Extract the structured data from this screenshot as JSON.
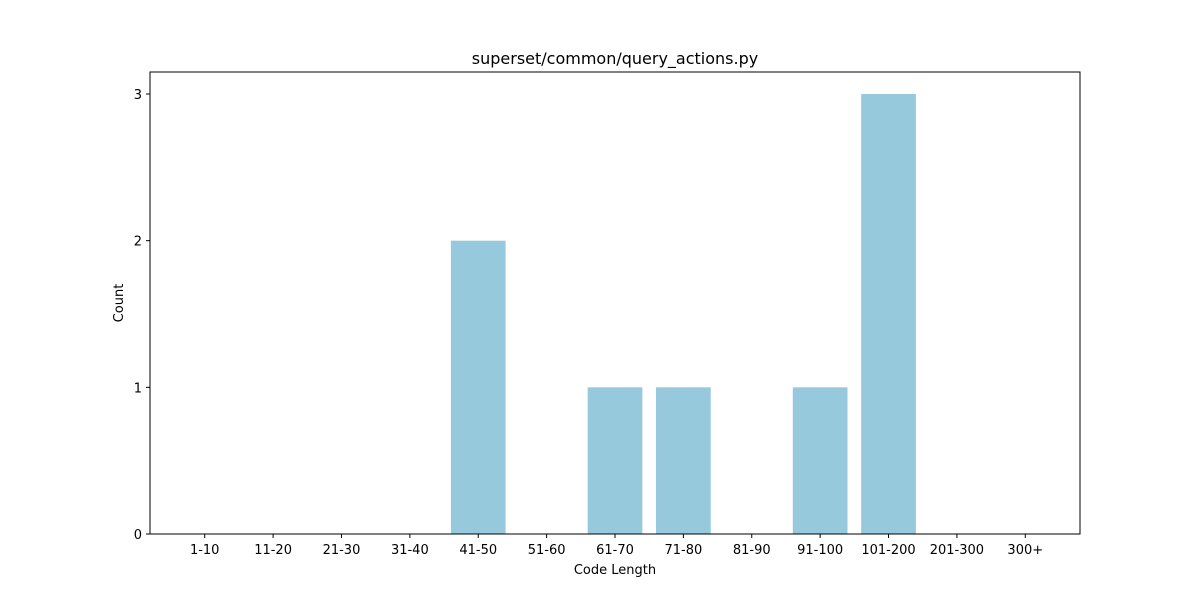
{
  "chart_data": {
    "type": "bar",
    "title": "superset/common/query_actions.py",
    "xlabel": "Code Length",
    "ylabel": "Count",
    "categories": [
      "1-10",
      "11-20",
      "21-30",
      "31-40",
      "41-50",
      "51-60",
      "61-70",
      "71-80",
      "81-90",
      "91-100",
      "101-200",
      "201-300",
      "300+"
    ],
    "values": [
      0,
      0,
      0,
      0,
      2,
      0,
      1,
      1,
      0,
      1,
      3,
      0,
      0
    ],
    "ylim": [
      0,
      3.15
    ],
    "yticks": [
      0,
      1,
      2,
      3
    ],
    "bar_color": "#96c9dc",
    "grid": false,
    "legend": "none"
  }
}
